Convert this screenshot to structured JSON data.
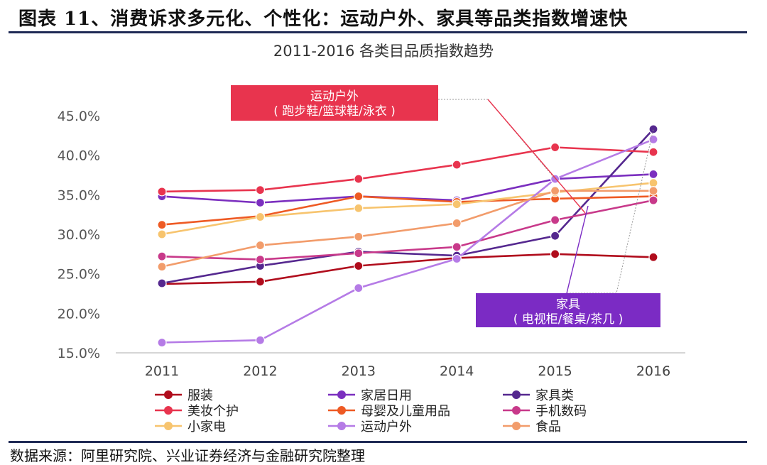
{
  "figure": {
    "title": "图表 11、消费诉求多元化、个性化：运动户外、家具等品类指数增速快",
    "source": "数据来源：阿里研究院、兴业证券经济与金融研究院整理"
  },
  "chart_data": {
    "type": "line",
    "title": "2011-2016 各类目品质指数趋势",
    "xlabel": "",
    "ylabel": "",
    "categories": [
      "2011",
      "2012",
      "2013",
      "2014",
      "2015",
      "2016"
    ],
    "yticks": [
      "15.0%",
      "20.0%",
      "25.0%",
      "30.0%",
      "35.0%",
      "40.0%",
      "45.0%"
    ],
    "ylim": [
      15,
      45
    ],
    "legend_position": "bottom",
    "series": [
      {
        "name": "服装",
        "color": "#b00c1c",
        "values": [
          23.7,
          24.0,
          26.0,
          27.0,
          27.5,
          27.1
        ]
      },
      {
        "name": "家居日用",
        "color": "#7b2fbf",
        "values": [
          34.8,
          34.0,
          34.8,
          34.3,
          37.0,
          37.6
        ]
      },
      {
        "name": "家具类",
        "color": "#55288f",
        "values": [
          23.8,
          26.0,
          27.8,
          27.3,
          29.8,
          43.3
        ]
      },
      {
        "name": "美妆个护",
        "color": "#e8344e",
        "values": [
          35.4,
          35.6,
          37.0,
          38.8,
          41.0,
          40.4
        ]
      },
      {
        "name": "母婴及儿童用品",
        "color": "#ee5a24",
        "values": [
          31.2,
          32.3,
          34.8,
          34.1,
          34.5,
          34.8
        ]
      },
      {
        "name": "手机数码",
        "color": "#c8398a",
        "values": [
          27.2,
          26.8,
          27.6,
          28.4,
          31.8,
          34.3
        ]
      },
      {
        "name": "小家电",
        "color": "#f7c46e",
        "values": [
          30.0,
          32.2,
          33.3,
          33.8,
          35.3,
          36.5
        ]
      },
      {
        "name": "运动户外",
        "color": "#b57be6",
        "values": [
          16.3,
          16.6,
          23.2,
          26.9,
          37.0,
          42.0
        ]
      },
      {
        "name": "食品",
        "color": "#f29c6b",
        "values": [
          25.9,
          28.6,
          29.7,
          31.4,
          35.5,
          35.5
        ]
      }
    ],
    "annotations": [
      {
        "label": "运动户外",
        "sublabel": "( 跑步鞋/篮球鞋/泳衣 )",
        "color": "#e8344e",
        "target_series": "运动户外",
        "target_category": "2015"
      },
      {
        "label": "家具",
        "sublabel": "( 电视柜/餐桌/茶几 )",
        "color": "#7b2bc4",
        "target_series": "家具类",
        "target_category": "2016"
      }
    ]
  }
}
